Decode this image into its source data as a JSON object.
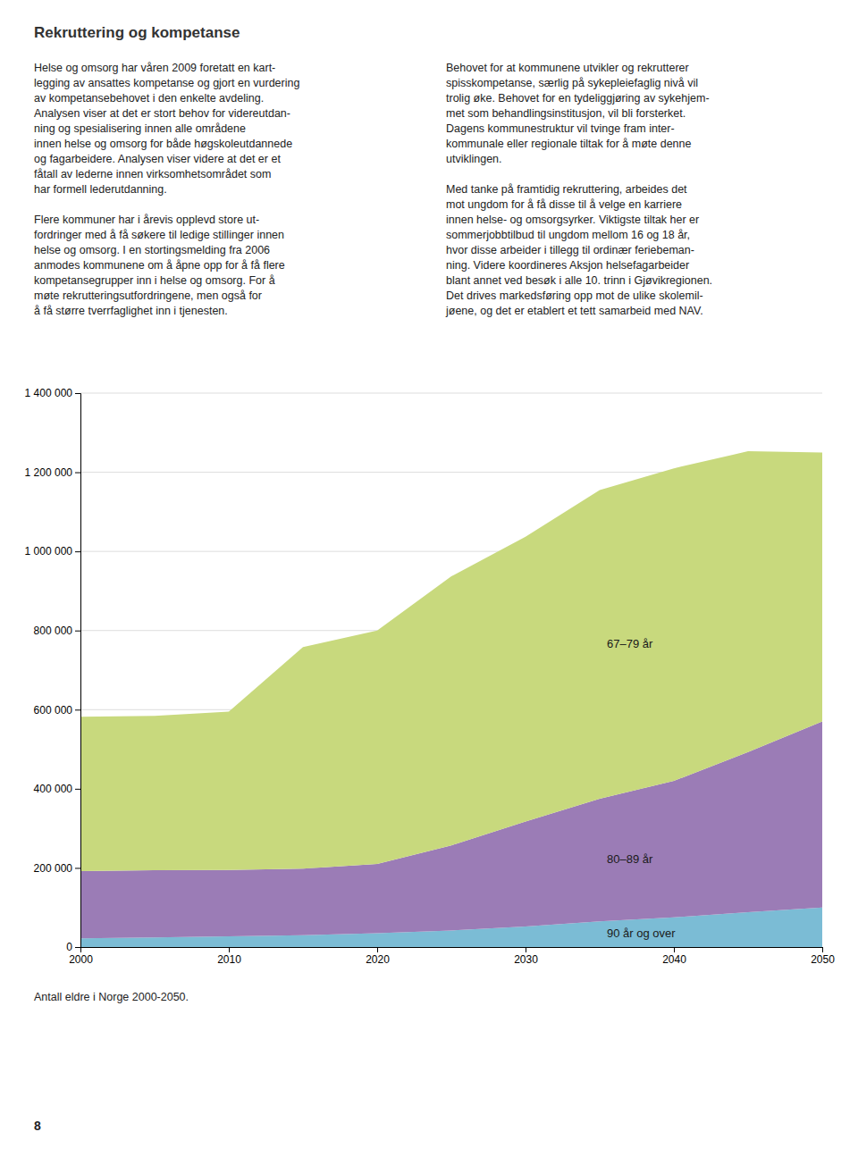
{
  "title": "Rekruttering og kompetanse",
  "columns": [
    [
      [
        "Helse og omsorg har våren 2009 foretatt en kart-",
        "legging av ansattes kompetanse og gjort en vurdering",
        "av kompetansebehovet i den enkelte avdeling.",
        "Analysen viser at det er stort behov for videreutdan-",
        "ning og spesialisering innen alle områdene",
        "innen helse og omsorg for både høgskoleutdannede",
        "og fagarbeidere. Analysen viser videre at det er et",
        "fåtall av lederne innen virksomhetsområdet som",
        "har formell lederutdanning."
      ],
      [
        "Flere kommuner har i årevis opplevd store ut-",
        "fordringer med å få søkere til ledige stillinger innen",
        "helse og omsorg. I en stortingsmelding fra 2006",
        "anmodes kommunene om å åpne opp for å få flere",
        "kompetansegrupper inn i helse og omsorg. For å",
        "møte rekrutteringsutfordringene, men også for",
        "å få større tverrfaglighet inn i tjenesten."
      ]
    ],
    [
      [
        "Behovet for at kommunene utvikler og rekrutterer",
        "spisskompetanse, særlig på sykepleiefaglig nivå vil",
        "trolig øke. Behovet for en tydeliggjøring av sykehjem-",
        "met som behandlingsinstitusjon, vil bli forsterket.",
        "Dagens kommunestruktur vil tvinge fram inter-",
        "kommunale eller regionale tiltak for å møte denne",
        "utviklingen."
      ],
      [
        "Med tanke på framtidig rekruttering, arbeides det",
        "mot ungdom for å få disse til å velge en karriere",
        "innen helse- og omsorgsyrker. Viktigste tiltak her er",
        "sommerjobbtilbud til ungdom mellom 16 og 18 år,",
        "hvor disse arbeider i tillegg til ordinær feriebeman-",
        "ning. Videre koordineres Aksjon helsefagarbeider",
        "blant annet ved besøk i alle 10. trinn i Gjøvikregionen.",
        "Det drives markedsføring opp mot de ulike skolemil-",
        "jøene, og det er etablert et tett samarbeid med NAV."
      ]
    ]
  ],
  "caption": "Antall eldre i Norge 2000-2050.",
  "page_number": "8",
  "chart_data": {
    "type": "area",
    "stacked": true,
    "x": [
      2000,
      2005,
      2010,
      2015,
      2020,
      2025,
      2030,
      2035,
      2040,
      2045,
      2050
    ],
    "series": [
      {
        "name": "90 år og over",
        "color": "#7bbcd5",
        "values": [
          22000,
          24000,
          27000,
          30000,
          35000,
          42000,
          52000,
          65000,
          75000,
          88000,
          100000
        ]
      },
      {
        "name": "80–89 år",
        "color": "#9b7cb6",
        "values": [
          170000,
          170000,
          168000,
          168000,
          175000,
          215000,
          265000,
          310000,
          345000,
          405000,
          470000
        ]
      },
      {
        "name": "67–79 år",
        "color": "#c8d97d",
        "values": [
          390000,
          390000,
          400000,
          560000,
          590000,
          680000,
          720000,
          780000,
          790000,
          760000,
          680000
        ]
      }
    ],
    "xlim": [
      2000,
      2050
    ],
    "xticks": [
      2000,
      2010,
      2020,
      2030,
      2040,
      2050
    ],
    "ylim": [
      0,
      1400000
    ],
    "yticks": [
      0,
      {
        "value": 200000,
        "label": "200 000"
      },
      {
        "value": 400000,
        "label": "400 000"
      },
      {
        "value": 600000,
        "label": "600 000"
      },
      {
        "value": 800000,
        "label": "800 000"
      },
      {
        "value": 1000000,
        "label": "1 000 000"
      },
      {
        "value": 1200000,
        "label": "1 200 000"
      },
      {
        "value": 1400000,
        "label": "1 400 000"
      }
    ],
    "grid": true
  }
}
